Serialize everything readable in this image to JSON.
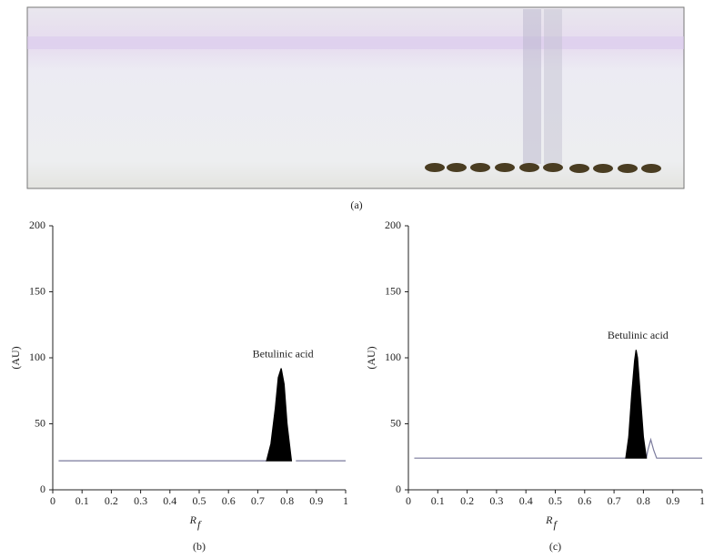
{
  "panel_a": {
    "caption": "(a)"
  },
  "chart_data": [
    {
      "type": "line",
      "caption": "(b)",
      "ylabel": "(AU)",
      "xlabel": "R",
      "xlabel_sub": "f",
      "annotation": "Betulinic acid",
      "xlim": [
        0,
        1
      ],
      "xticks": [
        0,
        0.1,
        0.2,
        0.3,
        0.4,
        0.5,
        0.6,
        0.7,
        0.8,
        0.9,
        1
      ],
      "ylim": [
        0,
        200
      ],
      "yticks": [
        0,
        50,
        100,
        150,
        200
      ],
      "series": [
        {
          "color": "#7a7a9c",
          "fill": false,
          "x": [
            0.02,
            0.73,
            0.78,
            0.83,
            1.0
          ],
          "values": [
            22,
            22,
            null,
            22,
            22
          ]
        },
        {
          "color": "#000000",
          "fill": true,
          "x": [
            0.73,
            0.745,
            0.76,
            0.77,
            0.78,
            0.79,
            0.8,
            0.815
          ],
          "values": [
            22,
            35,
            62,
            85,
            92,
            80,
            50,
            22
          ]
        }
      ]
    },
    {
      "type": "line",
      "caption": "(c)",
      "ylabel": "(AU)",
      "xlabel": "R",
      "xlabel_sub": "f",
      "annotation": "Betulinic acid",
      "xlim": [
        0,
        1
      ],
      "xticks": [
        0,
        0.1,
        0.2,
        0.3,
        0.4,
        0.5,
        0.6,
        0.7,
        0.8,
        0.9,
        1
      ],
      "ylim": [
        0,
        200
      ],
      "yticks": [
        0,
        50,
        100,
        150,
        200
      ],
      "series": [
        {
          "color": "#7a7a9c",
          "fill": false,
          "x": [
            0.02,
            0.74,
            0.78,
            0.81,
            0.815,
            0.825,
            0.835,
            0.845,
            1.0
          ],
          "values": [
            24,
            24,
            null,
            24,
            30,
            38,
            30,
            24,
            24
          ]
        },
        {
          "color": "#000000",
          "fill": true,
          "x": [
            0.74,
            0.75,
            0.76,
            0.77,
            0.775,
            0.78,
            0.79,
            0.8,
            0.81
          ],
          "values": [
            24,
            40,
            72,
            98,
            106,
            100,
            70,
            40,
            24
          ]
        }
      ]
    }
  ]
}
